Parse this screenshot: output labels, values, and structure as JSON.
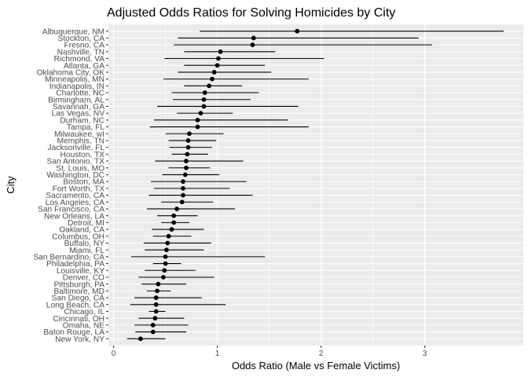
{
  "chart_data": {
    "type": "scatter",
    "title": "Adjusted Odds Ratios for Solving Homicides by City",
    "xlabel": "Odds Ratio (Male vs Female Victims)",
    "ylabel": "City",
    "xlim": [
      -0.05,
      3.95
    ],
    "xticks": [
      0,
      1,
      2,
      3
    ],
    "grid": true,
    "series": [
      {
        "values": [
          {
            "city": "Albuquerque, NM",
            "or": 1.77,
            "lo": 0.83,
            "hi": 3.76
          },
          {
            "city": "Stockton, CA",
            "or": 1.35,
            "lo": 0.62,
            "hi": 2.94
          },
          {
            "city": "Fresno, CA",
            "or": 1.34,
            "lo": 0.58,
            "hi": 3.07
          },
          {
            "city": "Nashville, TN",
            "or": 1.03,
            "lo": 0.68,
            "hi": 1.56
          },
          {
            "city": "Richmond, VA",
            "or": 1.01,
            "lo": 0.49,
            "hi": 2.03
          },
          {
            "city": "Atlanta, GA",
            "or": 1.0,
            "lo": 0.68,
            "hi": 1.46
          },
          {
            "city": "Oklahoma City, OK",
            "or": 0.97,
            "lo": 0.62,
            "hi": 1.52
          },
          {
            "city": "Minneapolis, MN",
            "or": 0.95,
            "lo": 0.48,
            "hi": 1.88
          },
          {
            "city": "Indianapolis, IN",
            "or": 0.92,
            "lo": 0.68,
            "hi": 1.24
          },
          {
            "city": "Charlotte, NC",
            "or": 0.88,
            "lo": 0.56,
            "hi": 1.4
          },
          {
            "city": "Birmingham, AL",
            "or": 0.87,
            "lo": 0.57,
            "hi": 1.32
          },
          {
            "city": "Savannah, GA",
            "or": 0.87,
            "lo": 0.42,
            "hi": 1.78
          },
          {
            "city": "Las Vegas, NV",
            "or": 0.84,
            "lo": 0.61,
            "hi": 1.15
          },
          {
            "city": "Durham, NC",
            "or": 0.81,
            "lo": 0.39,
            "hi": 1.68
          },
          {
            "city": "Tampa, FL",
            "or": 0.81,
            "lo": 0.35,
            "hi": 1.88
          },
          {
            "city": "Milwaukee, wI",
            "or": 0.73,
            "lo": 0.5,
            "hi": 1.06
          },
          {
            "city": "Memphis, TN",
            "or": 0.72,
            "lo": 0.53,
            "hi": 0.99
          },
          {
            "city": "Jacksonville, FL",
            "or": 0.72,
            "lo": 0.54,
            "hi": 0.95
          },
          {
            "city": "Houston, TX",
            "or": 0.71,
            "lo": 0.56,
            "hi": 0.91
          },
          {
            "city": "San Antonio, TX",
            "or": 0.7,
            "lo": 0.4,
            "hi": 1.25
          },
          {
            "city": "St. Louis, MO",
            "or": 0.7,
            "lo": 0.53,
            "hi": 0.93
          },
          {
            "city": "Washington, DC",
            "or": 0.69,
            "lo": 0.47,
            "hi": 1.02
          },
          {
            "city": "Boston, MA",
            "or": 0.67,
            "lo": 0.36,
            "hi": 1.28
          },
          {
            "city": "Fort Worth, TX",
            "or": 0.67,
            "lo": 0.39,
            "hi": 1.12
          },
          {
            "city": "Sacramento, CA",
            "or": 0.67,
            "lo": 0.34,
            "hi": 1.34
          },
          {
            "city": "Los Angeles, CA",
            "or": 0.66,
            "lo": 0.46,
            "hi": 0.96
          },
          {
            "city": "San Francisco, CA",
            "or": 0.61,
            "lo": 0.32,
            "hi": 1.17
          },
          {
            "city": "New Orleans, LA",
            "or": 0.58,
            "lo": 0.42,
            "hi": 0.81
          },
          {
            "city": "Detroit, MI",
            "or": 0.58,
            "lo": 0.46,
            "hi": 0.73
          },
          {
            "city": "Oakland, CA",
            "or": 0.56,
            "lo": 0.37,
            "hi": 0.87
          },
          {
            "city": "Columbus, OH",
            "or": 0.53,
            "lo": 0.38,
            "hi": 0.75
          },
          {
            "city": "Buffalo, NY",
            "or": 0.52,
            "lo": 0.29,
            "hi": 0.94
          },
          {
            "city": "Miami, FL",
            "or": 0.51,
            "lo": 0.3,
            "hi": 0.87
          },
          {
            "city": "San Bernardino, CA",
            "or": 0.5,
            "lo": 0.17,
            "hi": 1.46
          },
          {
            "city": "Philadelphia, PA",
            "or": 0.5,
            "lo": 0.38,
            "hi": 0.65
          },
          {
            "city": "Louisville, KY",
            "or": 0.49,
            "lo": 0.3,
            "hi": 0.79
          },
          {
            "city": "Denver, CO",
            "or": 0.48,
            "lo": 0.24,
            "hi": 0.97
          },
          {
            "city": "Pittsburgh, PA",
            "or": 0.43,
            "lo": 0.27,
            "hi": 0.7
          },
          {
            "city": "Baltimore, MD",
            "or": 0.42,
            "lo": 0.32,
            "hi": 0.55
          },
          {
            "city": "San Diego, CA",
            "or": 0.41,
            "lo": 0.2,
            "hi": 0.85
          },
          {
            "city": "Long Beach, CA",
            "or": 0.41,
            "lo": 0.16,
            "hi": 1.08
          },
          {
            "city": "Chicago, IL",
            "or": 0.41,
            "lo": 0.34,
            "hi": 0.5
          },
          {
            "city": "Cincinnati, OH",
            "or": 0.4,
            "lo": 0.24,
            "hi": 0.68
          },
          {
            "city": "Omaha, NE",
            "or": 0.38,
            "lo": 0.2,
            "hi": 0.72
          },
          {
            "city": "Baton Rouge, LA",
            "or": 0.38,
            "lo": 0.21,
            "hi": 0.7
          },
          {
            "city": "New York, NY",
            "or": 0.26,
            "lo": 0.13,
            "hi": 0.5
          }
        ]
      }
    ]
  }
}
